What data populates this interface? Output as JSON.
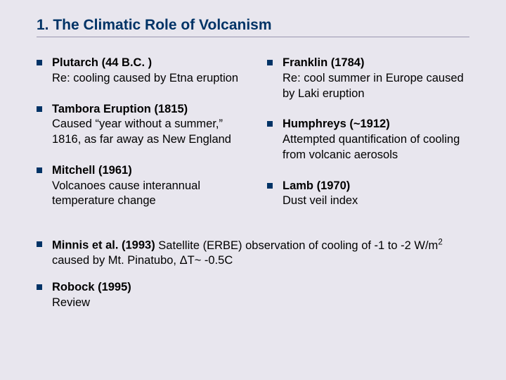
{
  "title": "1. The Climatic Role of Volcanism",
  "background_color": "#e8e6ee",
  "title_color": "#003366",
  "bullet_color": "#003366",
  "body_fontsize": 16.5,
  "left": [
    {
      "head": "Plutarch (44 B.C. )",
      "body": "Re: cooling caused by Etna eruption"
    },
    {
      "head": "Tambora Eruption (1815)",
      "body": "Caused “year without a summer,” 1816, as far away as New England"
    },
    {
      "head": "Mitchell (1961)",
      "body": "Volcanoes cause interannual temperature change"
    }
  ],
  "right": [
    {
      "head": "Franklin (1784)",
      "body": "Re: cool summer in Europe caused by Laki eruption"
    },
    {
      "head": "Humphreys (~1912)",
      "body": "Attempted quantification of cooling from volcanic aerosols"
    },
    {
      "head": "Lamb (1970)",
      "body": "Dust veil index"
    }
  ],
  "full": [
    {
      "head": "Minnis et al. (1993)",
      "body_html": " Satellite (ERBE) observation of cooling of -1 to -2  W/m<sup>2</sup> caused by Mt. Pinatubo, ΔT~ -0.5C"
    },
    {
      "head": "Robock (1995)",
      "body": "Review"
    }
  ]
}
